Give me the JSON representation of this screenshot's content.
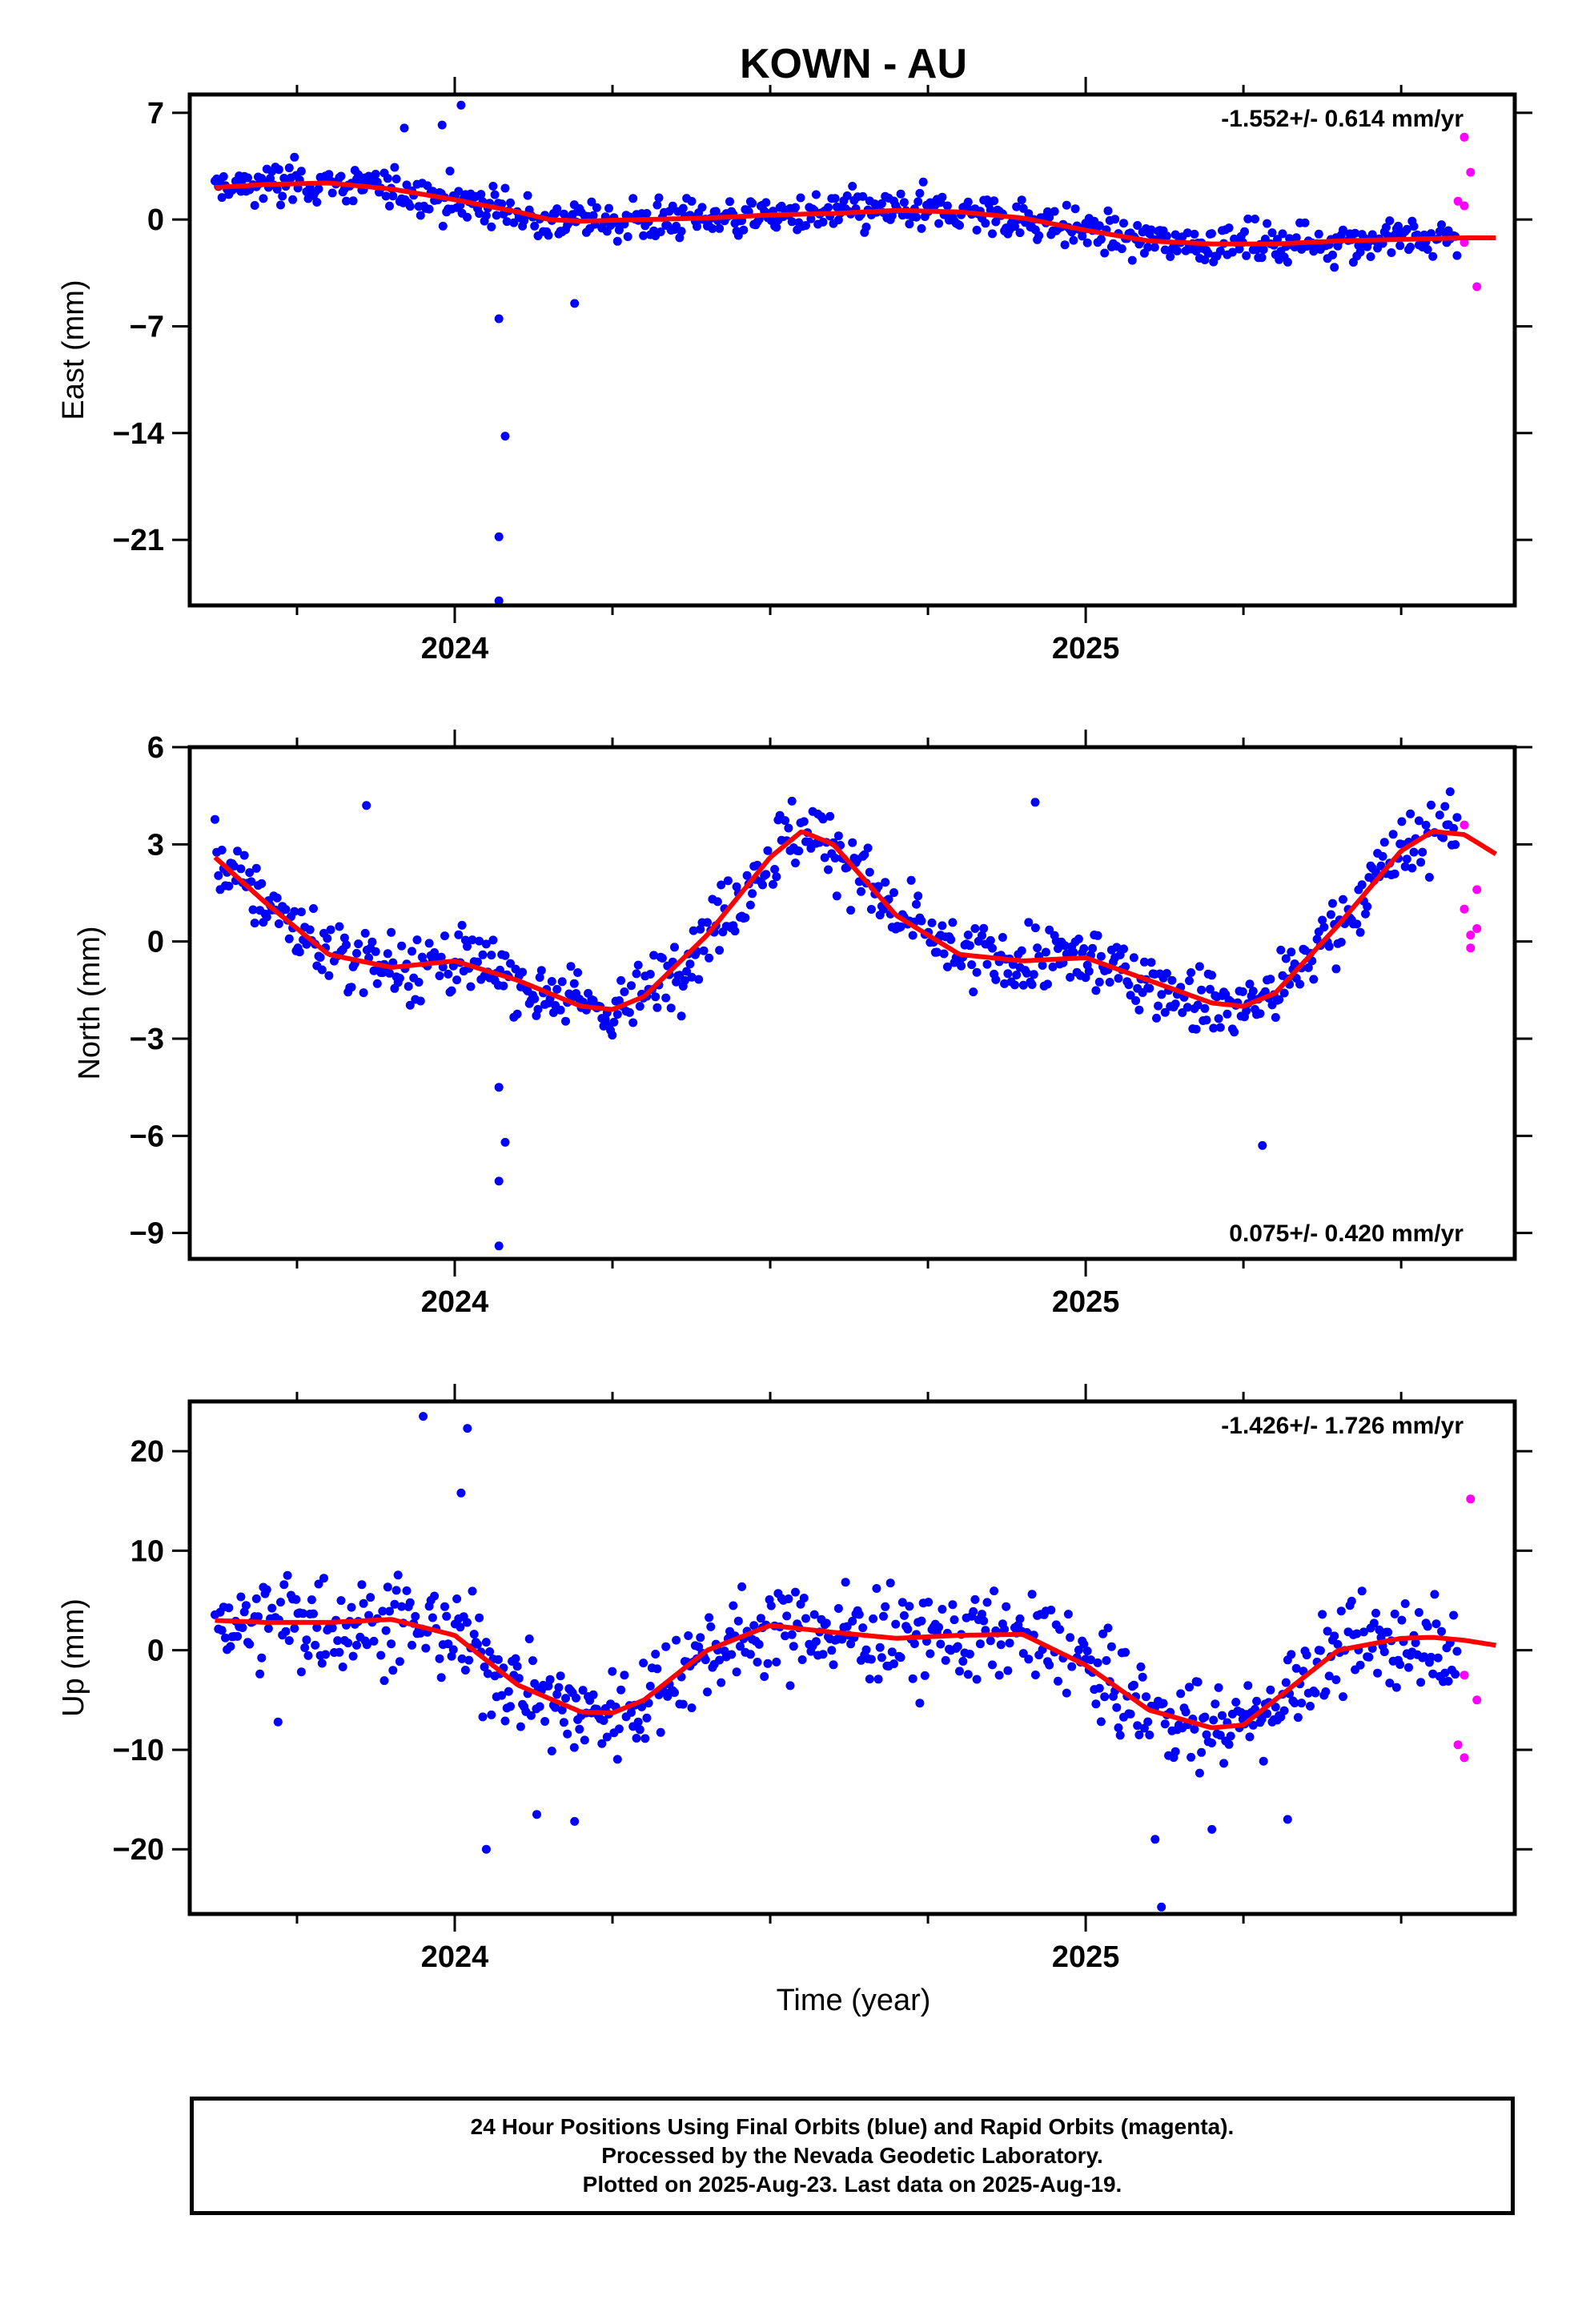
{
  "chart_data": {
    "title": "KOWN - AU",
    "xlabel": "Time (year)",
    "x_ticks": [
      "2024",
      "2025"
    ],
    "xlim": [
      2023.58,
      2025.68
    ],
    "colors": {
      "final": "#0000ff",
      "rapid": "#ff00ff",
      "fit": "#ff0000"
    },
    "panels": [
      {
        "type": "scatter",
        "ylabel": "East (mm)",
        "ylim": [
          -25.3,
          8.2
        ],
        "y_ticks": [
          7,
          0,
          -7,
          -14,
          -21
        ],
        "tick_labels": [
          "7",
          "0",
          "−7",
          "−14",
          "−21"
        ],
        "rate_label": "-1.552+/- 0.614 mm/yr",
        "rate_position": "top-right",
        "fit": {
          "x": [
            2023.62,
            2023.7,
            2023.8,
            2023.9,
            2024.0,
            2024.1,
            2024.15,
            2024.2,
            2024.3,
            2024.4,
            2024.5,
            2024.6,
            2024.7,
            2024.8,
            2024.9,
            2025.0,
            2025.1,
            2025.2,
            2025.3,
            2025.4,
            2025.5,
            2025.6,
            2025.65
          ],
          "y": [
            2.1,
            2.3,
            2.4,
            2.0,
            1.3,
            0.5,
            0.0,
            -0.1,
            0.0,
            0.1,
            0.3,
            0.4,
            0.6,
            0.5,
            0.1,
            -0.7,
            -1.4,
            -1.6,
            -1.6,
            -1.4,
            -1.3,
            -1.2,
            -1.2
          ]
        },
        "outliers": [
          [
            2024.07,
            -6.5
          ],
          [
            2024.08,
            -14.2
          ],
          [
            2024.07,
            -20.8
          ],
          [
            2024.07,
            -25.0
          ],
          [
            2023.98,
            6.2
          ],
          [
            2024.01,
            7.5
          ],
          [
            2023.92,
            6.0
          ],
          [
            2024.19,
            -5.5
          ]
        ],
        "rapid": [
          [
            2025.6,
            5.4
          ],
          [
            2025.61,
            3.1
          ],
          [
            2025.59,
            1.2
          ],
          [
            2025.6,
            -1.5
          ],
          [
            2025.62,
            -4.4
          ],
          [
            2025.6,
            0.9
          ]
        ]
      },
      {
        "type": "scatter",
        "ylabel": "North (mm)",
        "ylim": [
          -9.8,
          6.0
        ],
        "y_ticks": [
          6,
          3,
          0,
          -3,
          -6,
          -9
        ],
        "tick_labels": [
          "6",
          "3",
          "0",
          "−3",
          "−6",
          "−9"
        ],
        "rate_label": "0.075+/- 0.420 mm/yr",
        "rate_position": "bottom-right",
        "fit": {
          "x": [
            2023.62,
            2023.7,
            2023.8,
            2023.9,
            2024.0,
            2024.1,
            2024.2,
            2024.25,
            2024.3,
            2024.4,
            2024.5,
            2024.55,
            2024.6,
            2024.7,
            2024.8,
            2024.9,
            2025.0,
            2025.1,
            2025.2,
            2025.25,
            2025.3,
            2025.4,
            2025.5,
            2025.55,
            2025.6,
            2025.65
          ],
          "y": [
            2.6,
            1.2,
            -0.4,
            -0.8,
            -0.6,
            -1.2,
            -2.0,
            -2.1,
            -1.7,
            0.2,
            2.6,
            3.4,
            3.0,
            0.8,
            -0.4,
            -0.6,
            -0.5,
            -1.2,
            -1.9,
            -2.0,
            -1.6,
            0.5,
            2.8,
            3.4,
            3.3,
            2.7
          ]
        },
        "outliers": [
          [
            2024.07,
            -4.5
          ],
          [
            2024.08,
            -6.2
          ],
          [
            2024.07,
            -7.4
          ],
          [
            2024.07,
            -9.4
          ],
          [
            2023.86,
            4.2
          ],
          [
            2024.92,
            4.3
          ],
          [
            2025.28,
            -6.3
          ]
        ],
        "rapid": [
          [
            2025.6,
            3.6
          ],
          [
            2025.62,
            1.6
          ],
          [
            2025.6,
            1.0
          ],
          [
            2025.61,
            0.2
          ],
          [
            2025.62,
            0.4
          ],
          [
            2025.61,
            -0.2
          ]
        ]
      },
      {
        "type": "scatter",
        "ylabel": "Up (mm)",
        "ylim": [
          -26.5,
          25
        ],
        "y_ticks": [
          20,
          10,
          0,
          -10,
          -20
        ],
        "tick_labels": [
          "20",
          "10",
          "0",
          "−10",
          "−20"
        ],
        "rate_label": "-1.426+/- 1.726 mm/yr",
        "rate_position": "top-right",
        "fit": {
          "x": [
            2023.62,
            2023.7,
            2023.8,
            2023.9,
            2024.0,
            2024.1,
            2024.2,
            2024.25,
            2024.3,
            2024.4,
            2024.5,
            2024.6,
            2024.7,
            2024.8,
            2024.9,
            2025.0,
            2025.1,
            2025.2,
            2025.25,
            2025.3,
            2025.4,
            2025.5,
            2025.55,
            2025.6,
            2025.65
          ],
          "y": [
            3.0,
            2.8,
            2.8,
            3.1,
            1.5,
            -3.5,
            -6.2,
            -6.3,
            -5.0,
            0.0,
            2.5,
            1.8,
            1.2,
            1.5,
            1.6,
            -1.5,
            -6.0,
            -7.8,
            -7.5,
            -5.0,
            0.0,
            1.2,
            1.3,
            1.0,
            0.5
          ]
        },
        "outliers": [
          [
            2023.95,
            23.5
          ],
          [
            2024.01,
            15.8
          ],
          [
            2024.02,
            22.3
          ],
          [
            2024.05,
            -20.0
          ],
          [
            2024.13,
            -16.5
          ],
          [
            2024.19,
            -17.2
          ],
          [
            2025.12,
            -25.8
          ],
          [
            2025.11,
            -19.0
          ],
          [
            2025.2,
            -18.0
          ],
          [
            2025.32,
            -17.0
          ],
          [
            2023.72,
            -7.2
          ]
        ],
        "rapid": [
          [
            2025.61,
            15.2
          ],
          [
            2025.6,
            -2.5
          ],
          [
            2025.62,
            -5.0
          ],
          [
            2025.59,
            -9.5
          ],
          [
            2025.6,
            -10.8
          ]
        ]
      }
    ]
  },
  "footer": {
    "line1": "24 Hour Positions Using Final Orbits (blue) and Rapid Orbits (magenta).",
    "line2": "Processed by the Nevada Geodetic Laboratory.",
    "line3": "Plotted on 2025-Aug-23. Last data on 2025-Aug-19."
  }
}
